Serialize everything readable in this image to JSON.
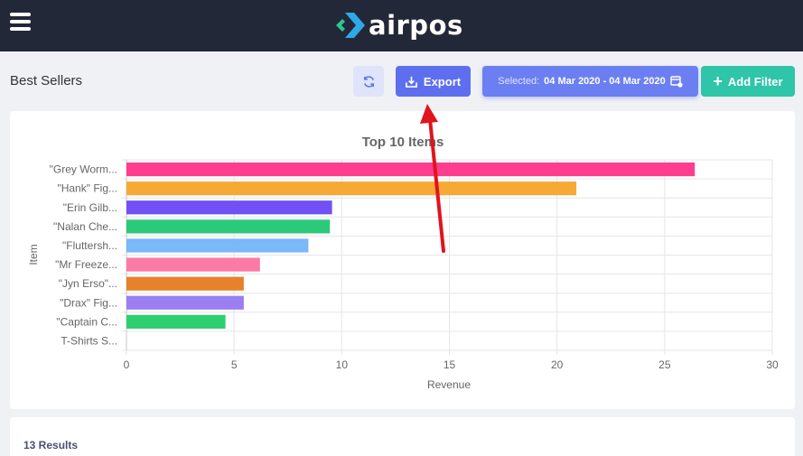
{
  "header": {
    "logo_text": "airpos",
    "menu_icon": "hamburger-menu-icon"
  },
  "toolbar": {
    "page_title": "Best Sellers",
    "refresh_icon": "refresh-icon",
    "export_label": "Export",
    "export_icon": "download-icon",
    "date_prefix": "Selected:",
    "date_range": "04 Mar 2020 - 04 Mar 2020",
    "date_icon": "calendar-icon",
    "add_filter_label": "Add Filter"
  },
  "chart_data": {
    "type": "bar",
    "orientation": "horizontal",
    "title": "Top 10 Items",
    "xlabel": "Revenue",
    "ylabel": "Item",
    "xlim": [
      0,
      30
    ],
    "xticks": [
      0,
      5,
      10,
      15,
      20,
      25,
      30
    ],
    "grid": true,
    "categories": [
      "\"Grey Worm...",
      "\"Hank\" Fig...",
      "\"Erin Gilb...",
      "\"Nalan Che...",
      "\"Fluttersh...",
      "\"Mr Freeze...",
      "\"Jyn Erso\"...",
      "\"Drax\" Fig...",
      "\"Captain C...",
      "T-Shirts S..."
    ],
    "values": [
      26.4,
      20.9,
      9.55,
      9.45,
      8.45,
      6.2,
      5.45,
      5.45,
      4.6,
      0
    ],
    "colors": [
      "#ff3d8f",
      "#f7a936",
      "#7150f5",
      "#2cc97a",
      "#7ab8f7",
      "#fb7aa6",
      "#e8812b",
      "#9b7ef2",
      "#2ecf6f",
      "#2ecf6f"
    ]
  },
  "results": {
    "count_text": "13 Results"
  },
  "annotation": {
    "arrow_color": "#e0141e"
  }
}
